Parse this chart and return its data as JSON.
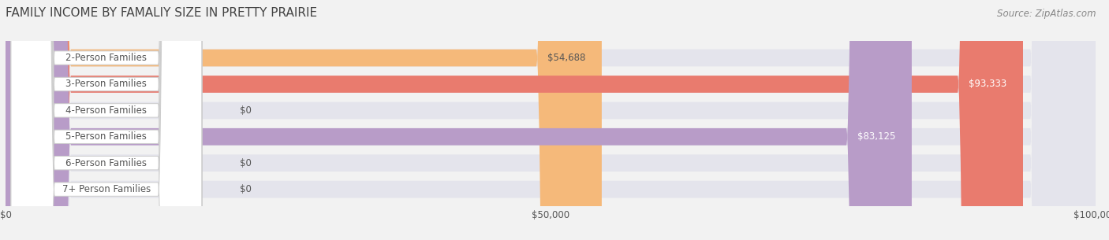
{
  "title": "FAMILY INCOME BY FAMALIY SIZE IN PRETTY PRAIRIE",
  "source": "Source: ZipAtlas.com",
  "categories": [
    "2-Person Families",
    "3-Person Families",
    "4-Person Families",
    "5-Person Families",
    "6-Person Families",
    "7+ Person Families"
  ],
  "values": [
    54688,
    93333,
    0,
    83125,
    0,
    0
  ],
  "bar_colors": [
    "#f5b97a",
    "#e97b6e",
    "#a8c8e8",
    "#b89cc8",
    "#6dbfb8",
    "#c8c0e8"
  ],
  "value_label_colors": [
    "#555555",
    "#ffffff",
    "#555555",
    "#ffffff",
    "#555555",
    "#555555"
  ],
  "xlim": [
    0,
    100000
  ],
  "xticks": [
    0,
    50000,
    100000
  ],
  "xtick_labels": [
    "$0",
    "$50,000",
    "$100,000"
  ],
  "background_color": "#f2f2f2",
  "bar_bg_color": "#e4e4ec",
  "title_fontsize": 11,
  "label_fontsize": 8.5,
  "value_fontsize": 8.5,
  "source_fontsize": 8.5,
  "bar_height": 0.65
}
